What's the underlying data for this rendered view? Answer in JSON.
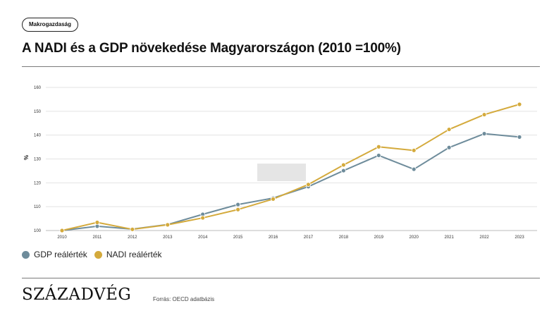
{
  "header": {
    "tag": "Makrogazdaság",
    "title": "A NADI és a GDP növekedése Magyarországon (2010 =100%)"
  },
  "footer": {
    "logo": "SZÁZADVÉG",
    "source": "Forrás: OECD adatbázis"
  },
  "chart_data": {
    "type": "line",
    "title": "A NADI és a GDP növekedése Magyarországon (2010 =100%)",
    "xlabel": "",
    "ylabel": "%",
    "ylim": [
      100,
      160
    ],
    "yticks": [
      100,
      110,
      120,
      130,
      140,
      150,
      160
    ],
    "grid": true,
    "legend_position": "bottom-left",
    "x": [
      "2010",
      "2011",
      "2012",
      "2013",
      "2014",
      "2015",
      "2016",
      "2017",
      "2018",
      "2019",
      "2020",
      "2021",
      "2022",
      "2023"
    ],
    "series": [
      {
        "name": "GDP reálérték",
        "color": "#6e8c9b",
        "values": [
          100,
          101.8,
          100.6,
          102.5,
          106.8,
          110.9,
          113.6,
          118.4,
          125.1,
          131.5,
          125.7,
          134.8,
          140.6,
          139.2
        ]
      },
      {
        "name": "NADI reálérték",
        "color": "#d4aa3c",
        "values": [
          100,
          103.4,
          100.5,
          102.4,
          105.3,
          108.8,
          113.2,
          119.3,
          127.5,
          135.1,
          133.6,
          142.4,
          148.6,
          152.9
        ]
      }
    ]
  }
}
